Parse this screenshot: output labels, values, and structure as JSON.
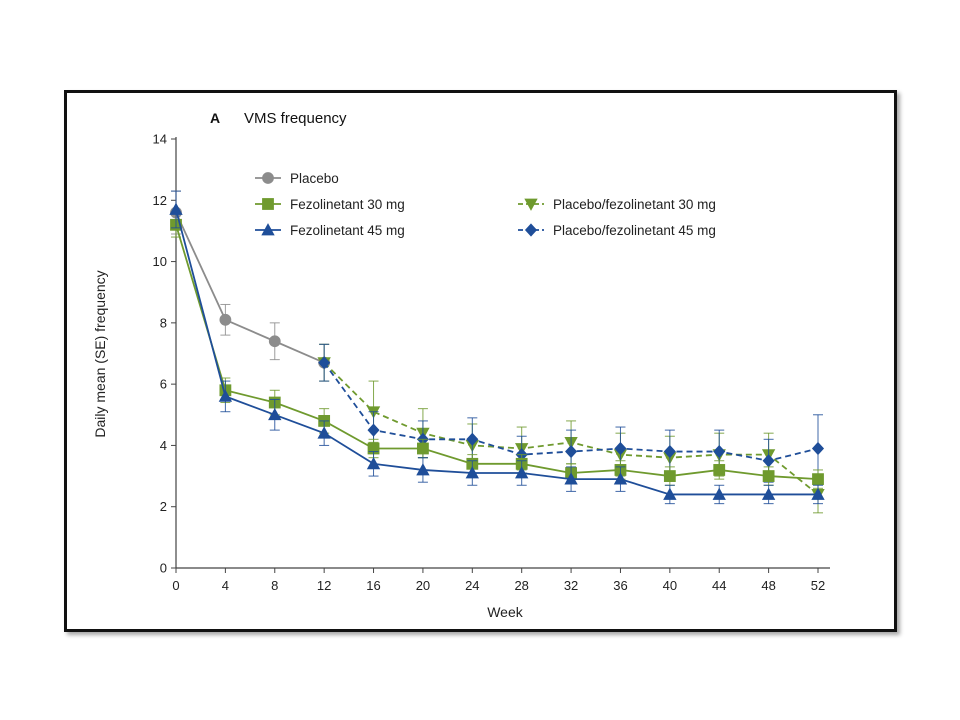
{
  "chart_data": {
    "type": "line",
    "panel_letter": "A",
    "title": "VMS frequency",
    "xlabel": "Week",
    "ylabel": "Daily mean (SE) frequency",
    "xlim": [
      0,
      52
    ],
    "ylim": [
      0,
      14
    ],
    "xticks": [
      0,
      4,
      8,
      12,
      16,
      20,
      24,
      28,
      32,
      36,
      40,
      44,
      48,
      52
    ],
    "yticks": [
      0,
      2,
      4,
      6,
      8,
      10,
      12,
      14
    ],
    "grid": false,
    "legend_position": "top",
    "series": [
      {
        "name": "Placebo",
        "color": "#8c8c8c",
        "marker": "circle",
        "dash": false,
        "x": [
          0,
          4,
          8,
          12
        ],
        "y": [
          11.6,
          8.1,
          7.4,
          6.7
        ],
        "err": [
          0.7,
          0.5,
          0.6,
          0.6
        ]
      },
      {
        "name": "Fezolinetant 30 mg",
        "color": "#6f9a2e",
        "marker": "square",
        "dash": false,
        "x": [
          0,
          4,
          8,
          12,
          16,
          20,
          24,
          28,
          32,
          36,
          40,
          44,
          48,
          52
        ],
        "y": [
          11.2,
          5.8,
          5.4,
          4.8,
          3.9,
          3.9,
          3.4,
          3.4,
          3.1,
          3.2,
          3.0,
          3.2,
          3.0,
          2.9
        ],
        "err": [
          0.4,
          0.4,
          0.4,
          0.4,
          0.3,
          0.3,
          0.3,
          0.3,
          0.3,
          0.3,
          0.3,
          0.3,
          0.3,
          0.3
        ]
      },
      {
        "name": "Fezolinetant 45 mg",
        "color": "#1f4e99",
        "marker": "triangle-up",
        "dash": false,
        "x": [
          0,
          4,
          8,
          12,
          16,
          20,
          24,
          28,
          32,
          36,
          40,
          44,
          48,
          52
        ],
        "y": [
          11.7,
          5.6,
          5.0,
          4.4,
          3.4,
          3.2,
          3.1,
          3.1,
          2.9,
          2.9,
          2.4,
          2.4,
          2.4,
          2.4
        ],
        "err": [
          0.6,
          0.5,
          0.5,
          0.4,
          0.4,
          0.4,
          0.4,
          0.4,
          0.4,
          0.4,
          0.3,
          0.3,
          0.3,
          0.3
        ]
      },
      {
        "name": "Placebo/fezolinetant 30 mg",
        "color": "#6f9a2e",
        "marker": "triangle-down",
        "dash": true,
        "x": [
          12,
          16,
          20,
          24,
          28,
          32,
          36,
          40,
          44,
          48,
          52
        ],
        "y": [
          6.7,
          5.1,
          4.4,
          4.0,
          3.9,
          4.1,
          3.7,
          3.6,
          3.7,
          3.7,
          2.4
        ],
        "err": [
          0.6,
          1.0,
          0.8,
          0.7,
          0.7,
          0.7,
          0.7,
          0.7,
          0.7,
          0.7,
          0.6
        ]
      },
      {
        "name": "Placebo/fezolinetant 45 mg",
        "color": "#1f4e99",
        "marker": "diamond",
        "dash": true,
        "x": [
          12,
          16,
          20,
          24,
          28,
          32,
          36,
          40,
          44,
          48,
          52
        ],
        "y": [
          6.7,
          4.5,
          4.2,
          4.2,
          3.7,
          3.8,
          3.9,
          3.8,
          3.8,
          3.5,
          3.9
        ],
        "err": [
          0.6,
          0.6,
          0.6,
          0.7,
          0.6,
          0.7,
          0.7,
          0.7,
          0.7,
          0.7,
          1.1
        ]
      }
    ]
  }
}
